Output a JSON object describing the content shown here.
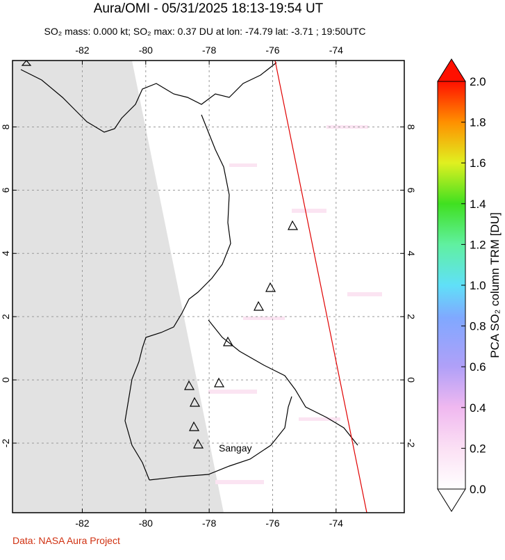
{
  "header": {
    "title": "Aura/OMI - 05/31/2025 18:13-19:54 UT",
    "subtitle": "SO₂ mass: 0.000 kt; SO₂ max: 0.37 DU at lon: -74.79 lat: -3.71 ; 19:50UTC"
  },
  "map": {
    "xlim": [
      -84.2,
      -71.85
    ],
    "xticks": [
      -82,
      -80,
      -78,
      -76,
      -74
    ],
    "ylim": [
      -4.2,
      10.1
    ],
    "yticks": [
      -2,
      0,
      2,
      4,
      6,
      8
    ],
    "volcano_label": "Sangay"
  },
  "colorbar": {
    "label": "PCA SO₂ column TRM [DU]",
    "lim": [
      0,
      2
    ],
    "ticks": [
      {
        "value": 0,
        "label": "0.0"
      },
      {
        "value": 0.2,
        "label": "0.2"
      },
      {
        "value": 0.4,
        "label": "0.4"
      },
      {
        "value": 0.6,
        "label": "0.6"
      },
      {
        "value": 0.8,
        "label": "0.8"
      },
      {
        "value": 1,
        "label": "1.0"
      },
      {
        "value": 1.2,
        "label": "1.2"
      },
      {
        "value": 1.4,
        "label": "1.4"
      },
      {
        "value": 1.6,
        "label": "1.6"
      },
      {
        "value": 1.8,
        "label": "1.8"
      },
      {
        "value": 2,
        "label": "2.0"
      }
    ]
  },
  "footer": {
    "credit": "Data: NASA Aura Project"
  }
}
